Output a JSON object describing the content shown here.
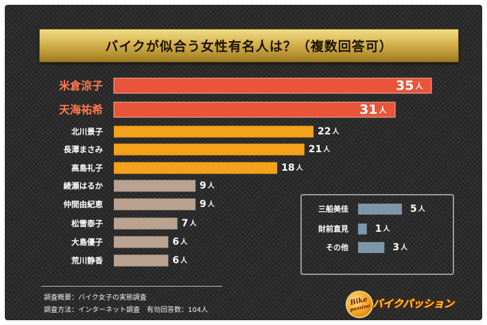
{
  "chart_data": {
    "type": "bar",
    "orientation": "horizontal",
    "title": "バイクが似合う女性有名人は？（複数回答可）",
    "unit": "人",
    "xlim": [
      0,
      35
    ],
    "grid": false,
    "main": {
      "categories": [
        "米倉涼子",
        "天海祐希",
        "北川景子",
        "長澤まさみ",
        "高島礼子",
        "綾瀬はるか",
        "仲間由紀恵",
        "松雪泰子",
        "大島優子",
        "荒川静香"
      ],
      "values": [
        35,
        31,
        22,
        21,
        18,
        9,
        9,
        7,
        6,
        6
      ]
    },
    "inset": {
      "categories": [
        "三船美佳",
        "財前直見",
        "その他"
      ],
      "values": [
        5,
        1,
        3
      ]
    }
  },
  "colors": {
    "top": "#e8553a",
    "mid": "#f4a11b",
    "low": "#b9a390",
    "inset": "#7d96a8",
    "top_label": "#ff7a50",
    "label": "#ffffff"
  },
  "footer": {
    "note1": "調査概要：バイク女子の実態調査",
    "note2": "調査方法：インターネット調査　有効回答数：104人"
  },
  "logo": {
    "badge_top": "Bike",
    "badge_bottom": "passion",
    "text": "バイクパッション"
  }
}
